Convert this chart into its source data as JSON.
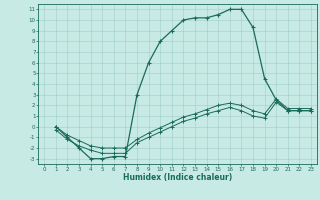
{
  "title": "",
  "xlabel": "Humidex (Indice chaleur)",
  "bg_color": "#c8eae4",
  "grid_color": "#9ecfc7",
  "line_color": "#1a6b5a",
  "tick_color": "#1a6b5a",
  "xlim": [
    -0.5,
    23.5
  ],
  "ylim": [
    -3.5,
    11.5
  ],
  "xticks": [
    0,
    1,
    2,
    3,
    4,
    5,
    6,
    7,
    8,
    9,
    10,
    11,
    12,
    13,
    14,
    15,
    16,
    17,
    18,
    19,
    20,
    21,
    22,
    23
  ],
  "yticks": [
    -3,
    -2,
    -1,
    0,
    1,
    2,
    3,
    4,
    5,
    6,
    7,
    8,
    9,
    10,
    11
  ],
  "curve1_x": [
    1,
    2,
    3,
    4,
    5,
    6,
    7,
    8,
    9,
    10,
    11,
    12,
    13,
    14,
    15,
    16,
    17,
    18,
    19,
    20,
    21,
    22,
    23
  ],
  "curve1_y": [
    0,
    -1,
    -2,
    -3,
    -3,
    -2.8,
    -2.8,
    3,
    6,
    8,
    9,
    10,
    10.2,
    10.2,
    10.5,
    11,
    11,
    9.3,
    4.5,
    2.5,
    1.5,
    1.5,
    1.5
  ],
  "curve2_x": [
    1,
    2,
    3,
    4,
    5,
    6,
    7,
    8,
    9,
    10,
    11,
    12,
    13,
    14,
    15,
    16,
    17,
    18,
    19,
    20,
    21,
    22,
    23
  ],
  "curve2_y": [
    -0.3,
    -1.2,
    -1.8,
    -2.2,
    -2.5,
    -2.5,
    -2.5,
    -1.5,
    -1.0,
    -0.5,
    0.0,
    0.5,
    0.8,
    1.2,
    1.5,
    1.8,
    1.5,
    1.0,
    0.8,
    2.3,
    1.5,
    1.5,
    1.5
  ],
  "curve3_x": [
    1,
    2,
    3,
    4,
    5,
    6,
    7,
    8,
    9,
    10,
    11,
    12,
    13,
    14,
    15,
    16,
    17,
    18,
    19,
    20,
    21,
    22,
    23
  ],
  "curve3_y": [
    0.0,
    -0.8,
    -1.3,
    -1.8,
    -2.0,
    -2.0,
    -2.0,
    -1.2,
    -0.6,
    -0.1,
    0.4,
    0.9,
    1.2,
    1.6,
    2.0,
    2.2,
    2.0,
    1.5,
    1.2,
    2.6,
    1.7,
    1.7,
    1.7
  ]
}
